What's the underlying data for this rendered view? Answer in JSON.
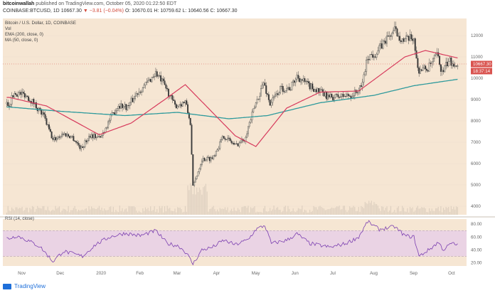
{
  "header": {
    "author": "bitcoinwallah",
    "published_text": "published on TradingView.com, October 05, 2020 01:22:50 EDT",
    "symbol": "COINBASE:BTCUSD, 1D",
    "last": "10667.30",
    "change": "▼ −3.81 (−0.04%)",
    "ohlc": "O: 10670.01  H: 10759.62  L: 10640.56  C: 10667.30"
  },
  "legend": {
    "pair": "Bitcoin / U.S. Dollar, 1D, COINBASE",
    "vol": "Vol",
    "ema": "EMA (200, close, 0)",
    "ma": "MA (50, close, 0)",
    "rsi": "RSI (14, close)"
  },
  "price_tags": {
    "last": "10667.30",
    "countdown": "18:37:14"
  },
  "footer": {
    "brand": "TradingView"
  },
  "colors": {
    "background": "#f6e6d3",
    "up_candle": "#e8e0d0",
    "down_candle": "#3a3a3a",
    "ema200": "#2e9a9c",
    "ma50": "#d73a5c",
    "rsi_line": "#7b3fb0",
    "rsi_band": "#ead3e4",
    "price_tag": "#d9534f"
  },
  "chart_data": [
    {
      "type": "candlestick",
      "title": "Bitcoin / U.S. Dollar, 1D, COINBASE",
      "yticks": [
        4000,
        5000,
        6000,
        7000,
        8000,
        9000,
        10000,
        11000,
        12000
      ],
      "ylim": [
        3600,
        12800
      ],
      "xticks": [
        "Nov",
        "Dec",
        "2020",
        "Feb",
        "Mar",
        "Apr",
        "May",
        "Jun",
        "Jul",
        "Aug",
        "Sep",
        "Oct"
      ],
      "close_anchors": [
        {
          "t": "2019-10-22",
          "v": 8800
        },
        {
          "t": "2019-10-26",
          "v": 9300
        },
        {
          "t": "2019-11-03",
          "v": 9250
        },
        {
          "t": "2019-11-10",
          "v": 8850
        },
        {
          "t": "2019-11-18",
          "v": 8200
        },
        {
          "t": "2019-11-25",
          "v": 7100
        },
        {
          "t": "2019-12-03",
          "v": 7400
        },
        {
          "t": "2019-12-10",
          "v": 7250
        },
        {
          "t": "2019-12-17",
          "v": 6700
        },
        {
          "t": "2019-12-24",
          "v": 7350
        },
        {
          "t": "2020-01-01",
          "v": 7200
        },
        {
          "t": "2020-01-08",
          "v": 8050
        },
        {
          "t": "2020-01-15",
          "v": 8750
        },
        {
          "t": "2020-01-22",
          "v": 8650
        },
        {
          "t": "2020-01-30",
          "v": 9350
        },
        {
          "t": "2020-02-06",
          "v": 9750
        },
        {
          "t": "2020-02-13",
          "v": 10250
        },
        {
          "t": "2020-02-20",
          "v": 9650
        },
        {
          "t": "2020-02-28",
          "v": 8700
        },
        {
          "t": "2020-03-07",
          "v": 8900
        },
        {
          "t": "2020-03-11",
          "v": 7900
        },
        {
          "t": "2020-03-13",
          "v": 4900
        },
        {
          "t": "2020-03-20",
          "v": 6200
        },
        {
          "t": "2020-03-28",
          "v": 6250
        },
        {
          "t": "2020-04-06",
          "v": 7300
        },
        {
          "t": "2020-04-15",
          "v": 6850
        },
        {
          "t": "2020-04-22",
          "v": 7150
        },
        {
          "t": "2020-04-30",
          "v": 8650
        },
        {
          "t": "2020-05-07",
          "v": 9800
        },
        {
          "t": "2020-05-12",
          "v": 8800
        },
        {
          "t": "2020-05-20",
          "v": 9500
        },
        {
          "t": "2020-05-28",
          "v": 9550
        },
        {
          "t": "2020-06-02",
          "v": 10100
        },
        {
          "t": "2020-06-10",
          "v": 9700
        },
        {
          "t": "2020-06-20",
          "v": 9350
        },
        {
          "t": "2020-06-27",
          "v": 9100
        },
        {
          "t": "2020-07-05",
          "v": 9150
        },
        {
          "t": "2020-07-15",
          "v": 9200
        },
        {
          "t": "2020-07-22",
          "v": 9550
        },
        {
          "t": "2020-07-27",
          "v": 11000
        },
        {
          "t": "2020-08-03",
          "v": 11200
        },
        {
          "t": "2020-08-10",
          "v": 11800
        },
        {
          "t": "2020-08-17",
          "v": 12250
        },
        {
          "t": "2020-08-24",
          "v": 11750
        },
        {
          "t": "2020-09-01",
          "v": 11900
        },
        {
          "t": "2020-09-04",
          "v": 10400
        },
        {
          "t": "2020-09-12",
          "v": 10450
        },
        {
          "t": "2020-09-19",
          "v": 11100
        },
        {
          "t": "2020-09-23",
          "v": 10250
        },
        {
          "t": "2020-09-28",
          "v": 10800
        },
        {
          "t": "2020-10-05",
          "v": 10667
        }
      ],
      "ema200_anchors": [
        {
          "t": "2019-10-22",
          "v": 8650
        },
        {
          "t": "2019-12-01",
          "v": 8450
        },
        {
          "t": "2020-01-20",
          "v": 8250
        },
        {
          "t": "2020-03-01",
          "v": 8400
        },
        {
          "t": "2020-04-10",
          "v": 8100
        },
        {
          "t": "2020-05-10",
          "v": 8250
        },
        {
          "t": "2020-06-20",
          "v": 8850
        },
        {
          "t": "2020-08-01",
          "v": 9200
        },
        {
          "t": "2020-09-01",
          "v": 9650
        },
        {
          "t": "2020-10-05",
          "v": 9950
        }
      ],
      "ma50_anchors": [
        {
          "t": "2019-10-22",
          "v": 9100
        },
        {
          "t": "2019-11-20",
          "v": 8700
        },
        {
          "t": "2019-12-31",
          "v": 7350
        },
        {
          "t": "2020-01-25",
          "v": 7900
        },
        {
          "t": "2020-02-20",
          "v": 9000
        },
        {
          "t": "2020-03-07",
          "v": 9700
        },
        {
          "t": "2020-04-15",
          "v": 7300
        },
        {
          "t": "2020-05-01",
          "v": 6800
        },
        {
          "t": "2020-05-25",
          "v": 8600
        },
        {
          "t": "2020-06-20",
          "v": 9350
        },
        {
          "t": "2020-07-20",
          "v": 9400
        },
        {
          "t": "2020-08-25",
          "v": 11000
        },
        {
          "t": "2020-09-10",
          "v": 11300
        },
        {
          "t": "2020-10-05",
          "v": 10950
        }
      ],
      "last_price": 10667.3
    },
    {
      "type": "line",
      "title": "RSI (14, close)",
      "yticks": [
        20.0,
        40.0,
        60.0,
        80.0
      ],
      "ylim": [
        15,
        88
      ],
      "band": [
        30,
        70
      ],
      "rsi_anchors": [
        {
          "t": "2019-10-22",
          "v": 58
        },
        {
          "t": "2019-10-28",
          "v": 62
        },
        {
          "t": "2019-11-05",
          "v": 55
        },
        {
          "t": "2019-11-15",
          "v": 45
        },
        {
          "t": "2019-11-25",
          "v": 22
        },
        {
          "t": "2019-12-03",
          "v": 38
        },
        {
          "t": "2019-12-18",
          "v": 30
        },
        {
          "t": "2019-12-28",
          "v": 48
        },
        {
          "t": "2020-01-08",
          "v": 60
        },
        {
          "t": "2020-01-20",
          "v": 66
        },
        {
          "t": "2020-02-01",
          "v": 62
        },
        {
          "t": "2020-02-13",
          "v": 70
        },
        {
          "t": "2020-02-22",
          "v": 50
        },
        {
          "t": "2020-03-02",
          "v": 46
        },
        {
          "t": "2020-03-08",
          "v": 35
        },
        {
          "t": "2020-03-13",
          "v": 18
        },
        {
          "t": "2020-03-20",
          "v": 40
        },
        {
          "t": "2020-03-28",
          "v": 44
        },
        {
          "t": "2020-04-06",
          "v": 55
        },
        {
          "t": "2020-04-15",
          "v": 48
        },
        {
          "t": "2020-04-25",
          "v": 56
        },
        {
          "t": "2020-05-01",
          "v": 72
        },
        {
          "t": "2020-05-08",
          "v": 78
        },
        {
          "t": "2020-05-13",
          "v": 50
        },
        {
          "t": "2020-05-25",
          "v": 55
        },
        {
          "t": "2020-06-02",
          "v": 65
        },
        {
          "t": "2020-06-12",
          "v": 50
        },
        {
          "t": "2020-06-28",
          "v": 44
        },
        {
          "t": "2020-07-10",
          "v": 50
        },
        {
          "t": "2020-07-20",
          "v": 60
        },
        {
          "t": "2020-07-27",
          "v": 84
        },
        {
          "t": "2020-08-05",
          "v": 72
        },
        {
          "t": "2020-08-17",
          "v": 76
        },
        {
          "t": "2020-08-25",
          "v": 62
        },
        {
          "t": "2020-09-01",
          "v": 60
        },
        {
          "t": "2020-09-05",
          "v": 30
        },
        {
          "t": "2020-09-14",
          "v": 42
        },
        {
          "t": "2020-09-20",
          "v": 52
        },
        {
          "t": "2020-09-24",
          "v": 40
        },
        {
          "t": "2020-09-30",
          "v": 50
        },
        {
          "t": "2020-10-05",
          "v": 48
        }
      ]
    }
  ]
}
